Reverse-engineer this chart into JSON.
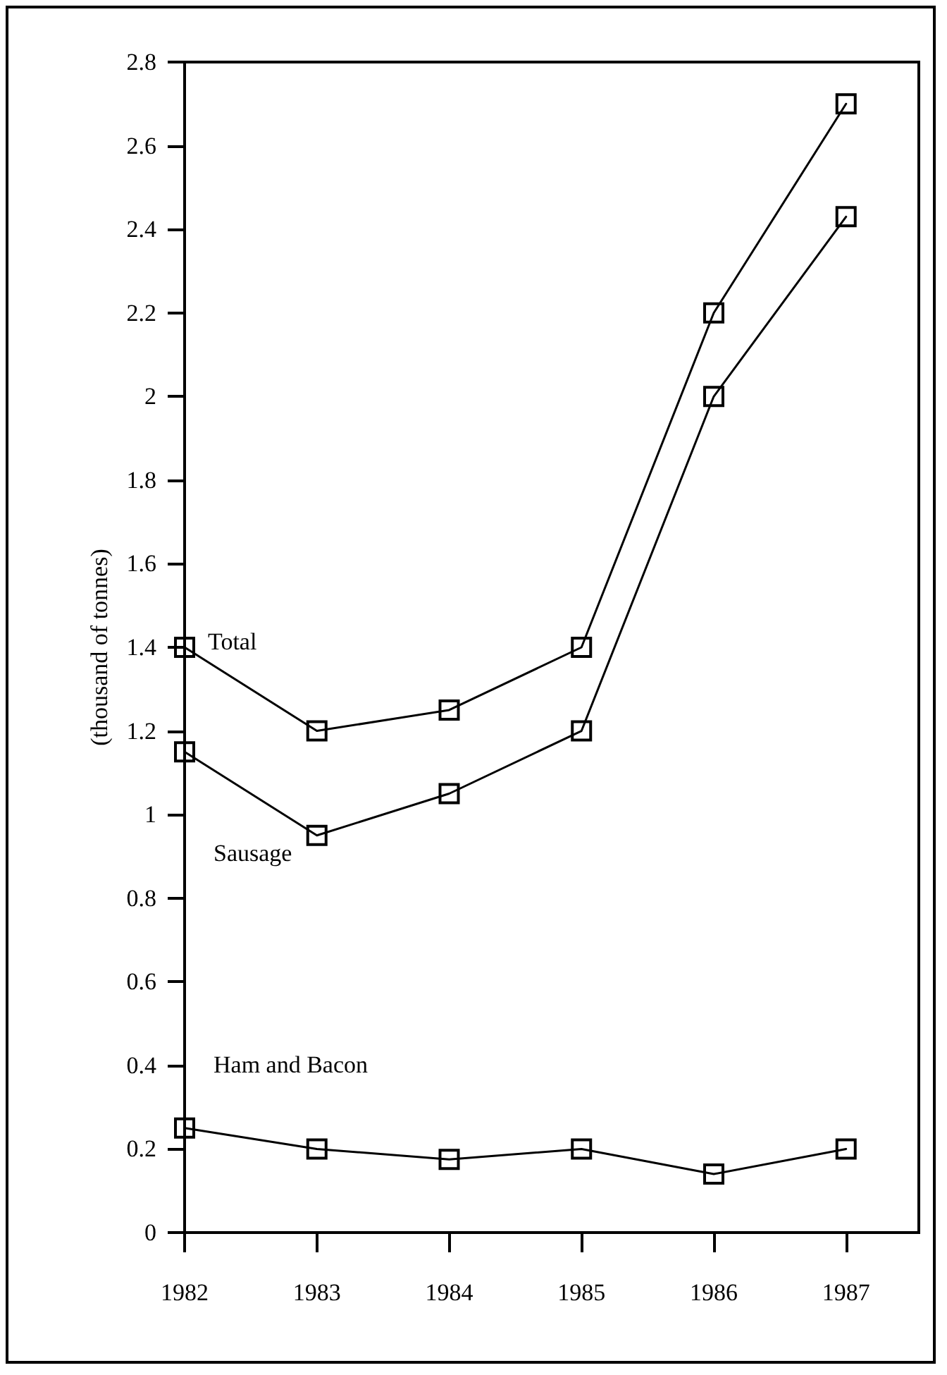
{
  "chart_data": {
    "type": "line",
    "ylabel": "(thousand of tonnes)",
    "x": [
      1982,
      1983,
      1984,
      1985,
      1986,
      1987
    ],
    "series": [
      {
        "name": "Total",
        "color": "#000000",
        "values": [
          1.4,
          1.2,
          1.25,
          1.4,
          2.2,
          2.7
        ]
      },
      {
        "name": "Sausage",
        "color": "#000000",
        "values": [
          1.15,
          0.95,
          1.05,
          1.2,
          2.0,
          2.43
        ]
      },
      {
        "name": "Ham and Bacon",
        "color": "#000000",
        "values": [
          0.25,
          0.2,
          0.175,
          0.2,
          0.14,
          0.2
        ]
      }
    ],
    "xlim": [
      1982,
      1987.55
    ],
    "xticks": [
      1982,
      1983,
      1984,
      1985,
      1986,
      1987
    ],
    "ylim": [
      0,
      2.8
    ],
    "yticks": [
      0,
      0.2,
      0.4,
      0.6,
      0.8,
      1,
      1.2,
      1.4,
      1.6,
      1.8,
      2,
      2.2,
      2.4,
      2.6,
      2.8
    ],
    "grid": false,
    "legend": false,
    "marker": "square",
    "line_style": "solid"
  }
}
